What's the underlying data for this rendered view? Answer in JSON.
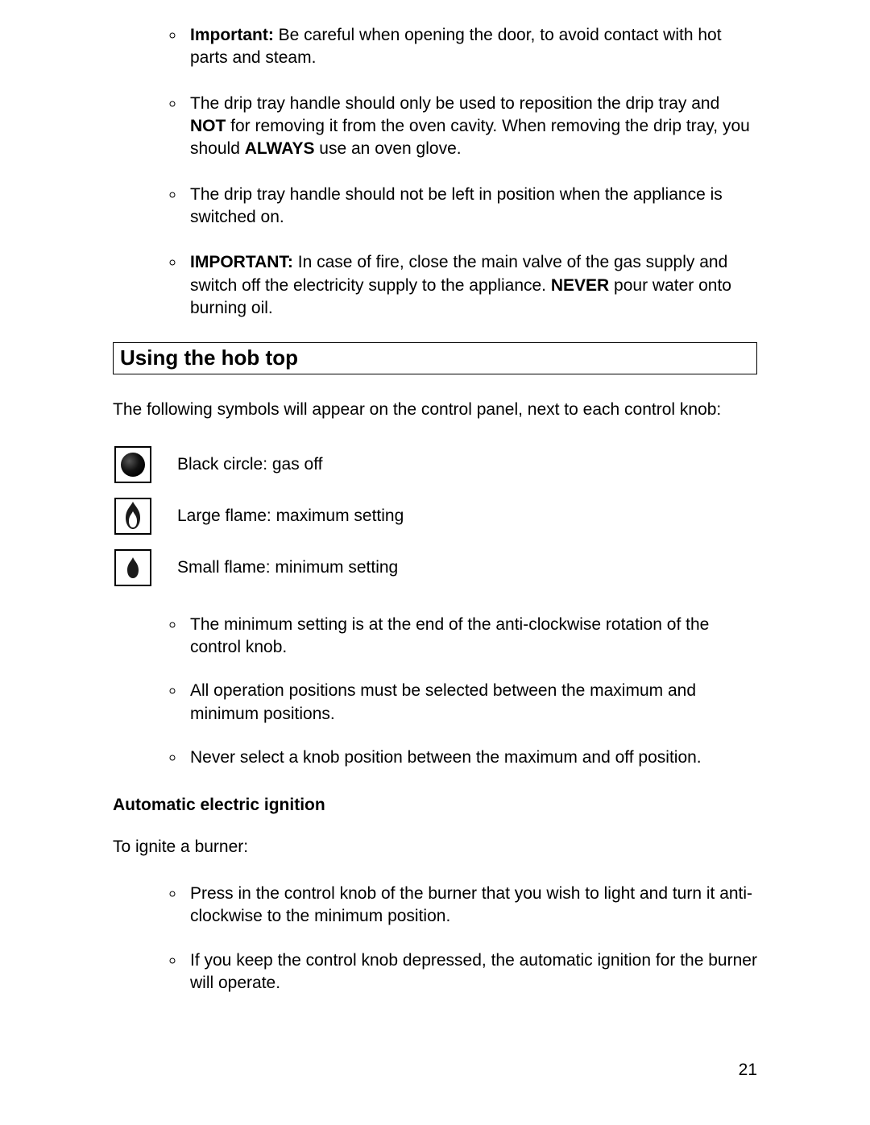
{
  "colors": {
    "text": "#000000",
    "background": "#ffffff",
    "border": "#000000",
    "icon_dark": "#1a1a1a",
    "flame_inner": "#ffffff"
  },
  "typography": {
    "body_fontsize_pt": 16,
    "heading_fontsize_pt": 20,
    "font_family": "Verdana"
  },
  "bullets_top": [
    {
      "prefix_bold": "Important:",
      "rest": " Be careful when opening the door, to avoid contact with hot parts and steam."
    },
    {
      "html": "The drip tray handle should only be used to reposition the drip tray and <b>NOT</b> for removing it from the oven cavity. When removing the drip tray, you should <b>ALWAYS</b> use an oven glove."
    },
    {
      "plain": "The drip tray handle should not be left in position when the appliance is switched on."
    },
    {
      "prefix_bold": "IMPORTANT:",
      "rest_html": " In case of fire, close the main valve of the gas supply and switch off the electricity supply to the appliance. <b>NEVER</b> pour water onto burning oil."
    }
  ],
  "section_heading": "Using the hob top",
  "intro_para": "The following symbols will appear on the control panel, next to each control knob:",
  "symbols": [
    {
      "icon": "black-circle",
      "label": "Black circle: gas off"
    },
    {
      "icon": "large-flame",
      "label": "Large flame: maximum setting"
    },
    {
      "icon": "small-flame",
      "label": "Small flame: minimum setting"
    }
  ],
  "bullets_mid": [
    "The minimum setting is at the end of the anti-clockwise rotation of the control knob.",
    "All operation positions must be selected between the maximum and minimum positions.",
    "Never select a knob position between the maximum and off position."
  ],
  "subheading": "Automatic electric ignition",
  "ignite_para": "To ignite a burner:",
  "bullets_bottom": [
    "Press in the control knob of the burner that you wish to light and turn it anti-clockwise to the minimum position.",
    "If you keep the control knob depressed, the automatic ignition for the burner will operate."
  ],
  "page_number": "21"
}
